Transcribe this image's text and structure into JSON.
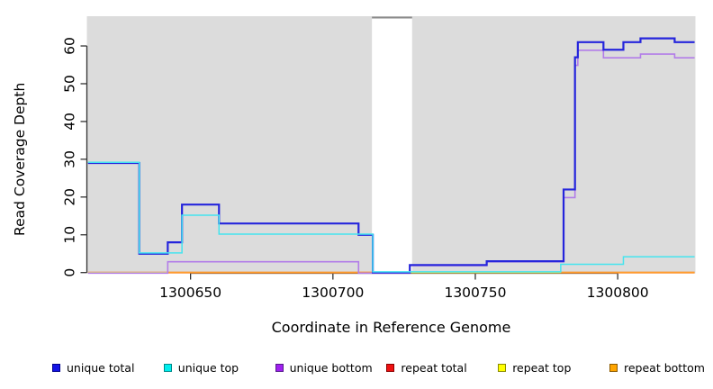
{
  "chart_data": {
    "type": "line",
    "subtype": "step-coverage-plot",
    "title": "",
    "xlabel": "Coordinate in Reference Genome",
    "ylabel": "Read Coverage Depth",
    "x_ticks": [
      1300650,
      1300700,
      1300750,
      1300800
    ],
    "y_ticks": [
      0,
      10,
      20,
      30,
      40,
      50,
      60
    ],
    "x_range": [
      1300613.6,
      1300827.3
    ],
    "y_range": [
      0,
      67
    ],
    "grid": false,
    "panel_background": "#dcdcdc",
    "masked_region": {
      "x_start": 1300713.7,
      "x_end": 1300727.8,
      "fill": "#ffffff",
      "cap_color": "#8a8a8a"
    },
    "series": [
      {
        "name": "unique total",
        "color": "#2525dc",
        "line_width": 2.2,
        "segments": [
          [
            1300614,
            1300632,
            29
          ],
          [
            1300632,
            1300642,
            5
          ],
          [
            1300642,
            1300647,
            8
          ],
          [
            1300647,
            1300660,
            18
          ],
          [
            1300660,
            1300709,
            13
          ],
          [
            1300709,
            1300714,
            10
          ],
          [
            1300714,
            1300727,
            0
          ],
          [
            1300727,
            1300754,
            2
          ],
          [
            1300754,
            1300781,
            3
          ],
          [
            1300781,
            1300785,
            22
          ],
          [
            1300785,
            1300786,
            57
          ],
          [
            1300786,
            1300795,
            61
          ],
          [
            1300795,
            1300802,
            59
          ],
          [
            1300802,
            1300808,
            61
          ],
          [
            1300808,
            1300820,
            62
          ],
          [
            1300820,
            1300827,
            61
          ]
        ]
      },
      {
        "name": "unique top",
        "color": "#45e4ee",
        "line_width": 1.5,
        "segments": [
          [
            1300614,
            1300632,
            29
          ],
          [
            1300632,
            1300647,
            5
          ],
          [
            1300647,
            1300660,
            15
          ],
          [
            1300660,
            1300714,
            10
          ],
          [
            1300714,
            1300780,
            0
          ],
          [
            1300780,
            1300802,
            2
          ],
          [
            1300802,
            1300827,
            4
          ]
        ]
      },
      {
        "name": "unique bottom",
        "color": "#b27de8",
        "line_width": 1.6,
        "segments": [
          [
            1300614,
            1300642,
            0
          ],
          [
            1300642,
            1300709,
            3
          ],
          [
            1300709,
            1300727,
            0
          ],
          [
            1300727,
            1300754,
            2
          ],
          [
            1300754,
            1300781,
            3
          ],
          [
            1300781,
            1300785,
            20
          ],
          [
            1300785,
            1300786,
            55
          ],
          [
            1300786,
            1300795,
            59
          ],
          [
            1300795,
            1300808,
            57
          ],
          [
            1300808,
            1300820,
            58
          ],
          [
            1300820,
            1300827,
            57
          ]
        ]
      },
      {
        "name": "repeat total",
        "color": "#e84a66",
        "line_width": 1.8,
        "segments": [
          [
            1300614,
            1300827,
            0
          ]
        ]
      },
      {
        "name": "repeat top",
        "color": "#efef4a",
        "line_width": 1.6,
        "segments": [
          [
            1300614,
            1300827,
            0
          ]
        ]
      },
      {
        "name": "repeat bottom",
        "color": "#ff9d2a",
        "line_width": 1.8,
        "segments": [
          [
            1300642,
            1300714,
            0
          ],
          [
            1300780,
            1300827,
            0
          ]
        ]
      }
    ],
    "legend": {
      "position": "bottom",
      "items": [
        {
          "label": "unique total",
          "fill": "#1414e6",
          "border": "#00008b"
        },
        {
          "label": "unique top",
          "fill": "#00eeee",
          "border": "#008b8b"
        },
        {
          "label": "unique bottom",
          "fill": "#a020f0",
          "border": "#551a8b"
        },
        {
          "label": "repeat total",
          "fill": "#ee1111",
          "border": "#8b0000"
        },
        {
          "label": "repeat top",
          "fill": "#ffff00",
          "border": "#8b8b00"
        },
        {
          "label": "repeat bottom",
          "fill": "#ffa500",
          "border": "#8b5a00"
        }
      ]
    }
  }
}
